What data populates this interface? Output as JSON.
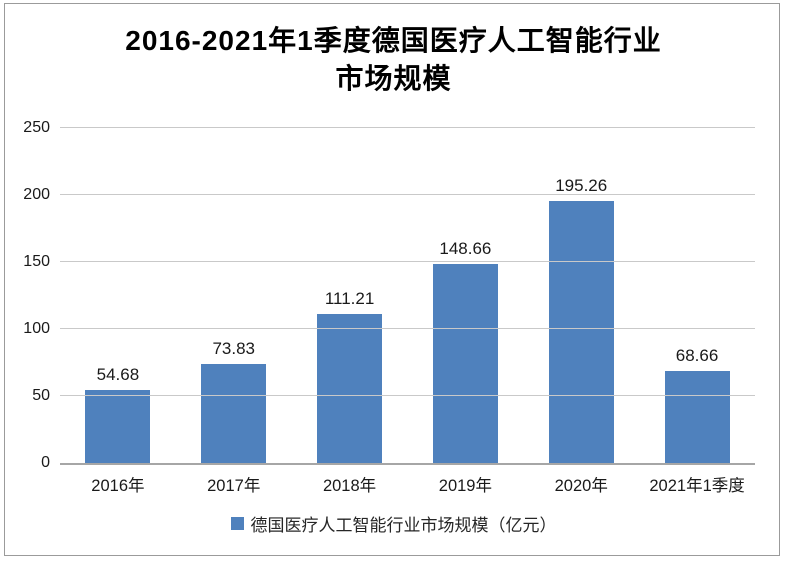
{
  "title": {
    "line1": "2016-2021年1季度德国医疗人工智能行业",
    "line2": "市场规模"
  },
  "legend": {
    "label": "德国医疗人工智能行业市场规模（亿元）"
  },
  "colors": {
    "bar": "#4f81bd",
    "gridline": "#c9c9c9",
    "axis_line": "#a6a6a6",
    "text": "#1a1a1a"
  },
  "chart_data": {
    "type": "bar",
    "title": "2016-2021年1季度德国医疗人工智能行业市场规模",
    "categories": [
      "2016年",
      "2017年",
      "2018年",
      "2019年",
      "2020年",
      "2021年1季度"
    ],
    "values": [
      54.68,
      73.83,
      111.21,
      148.66,
      195.26,
      68.66
    ],
    "value_labels": [
      "54.68",
      "73.83",
      "111.21",
      "148.66",
      "195.26",
      "68.66"
    ],
    "series_name": "德国医疗人工智能行业市场规模（亿元）",
    "xlabel": "",
    "ylabel": "",
    "ylim": [
      0,
      250
    ],
    "yticks": [
      0,
      50,
      100,
      150,
      200,
      250
    ],
    "grid": true,
    "legend_position": "bottom"
  }
}
